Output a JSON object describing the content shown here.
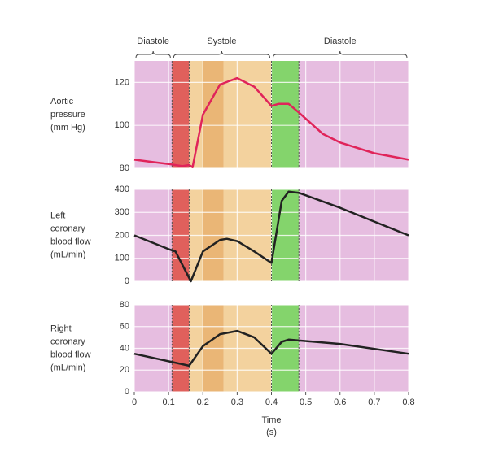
{
  "chart_data": [
    {
      "type": "line",
      "ylabel": [
        "Aortic",
        "pressure",
        "(mm Hg)"
      ],
      "phases": [
        {
          "label": "Diastole",
          "start": 0,
          "end": 0.11
        },
        {
          "label": "Systole",
          "start": 0.11,
          "end": 0.4
        },
        {
          "label": "Diastole",
          "start": 0.4,
          "end": 0.8
        }
      ],
      "background": "#e6bde0",
      "bands": [
        {
          "start": 0.11,
          "end": 0.16,
          "color": "#e0605c",
          "dashed": true
        },
        {
          "start": 0.16,
          "end": 0.2,
          "color": "#f3d29e",
          "dashed": false
        },
        {
          "start": 0.2,
          "end": 0.26,
          "color": "#eab676",
          "dashed": false
        },
        {
          "start": 0.26,
          "end": 0.4,
          "color": "#f3d29e",
          "dashed": false
        },
        {
          "start": 0.4,
          "end": 0.48,
          "color": "#84d46c",
          "dashed": true
        }
      ],
      "xlim": [
        0,
        0.8
      ],
      "ylim": [
        80,
        130
      ],
      "yticks": [
        80,
        100,
        120
      ],
      "x": [
        0,
        0.05,
        0.1,
        0.14,
        0.16,
        0.17,
        0.2,
        0.25,
        0.3,
        0.35,
        0.4,
        0.42,
        0.45,
        0.48,
        0.55,
        0.6,
        0.7,
        0.8
      ],
      "series": [
        {
          "color": "#e0245a",
          "values": [
            84,
            83,
            82,
            81,
            81.5,
            80.5,
            105,
            119,
            122,
            118,
            109,
            110,
            110,
            106,
            96,
            92,
            87,
            84
          ]
        }
      ]
    },
    {
      "type": "line",
      "ylabel": [
        "Left",
        "coronary",
        "blood flow",
        "(mL/min)"
      ],
      "xlim": [
        0,
        0.8
      ],
      "ylim": [
        0,
        400
      ],
      "yticks": [
        0,
        100,
        200,
        300,
        400
      ],
      "x": [
        0,
        0.1,
        0.12,
        0.165,
        0.2,
        0.25,
        0.27,
        0.3,
        0.35,
        0.4,
        0.43,
        0.45,
        0.48,
        0.6,
        0.7,
        0.8
      ],
      "series": [
        {
          "color": "#222222",
          "values": [
            200,
            140,
            130,
            0,
            130,
            180,
            185,
            175,
            130,
            80,
            350,
            390,
            385,
            320,
            260,
            200
          ]
        }
      ]
    },
    {
      "type": "line",
      "ylabel": [
        "Right",
        "coronary",
        "blood flow",
        "(mL/min)"
      ],
      "xlabel": [
        "Time",
        "(s)"
      ],
      "xlim": [
        0,
        0.8
      ],
      "xticks": [
        0,
        0.1,
        0.2,
        0.3,
        0.4,
        0.5,
        0.6,
        0.7,
        0.8
      ],
      "ylim": [
        0,
        80
      ],
      "yticks": [
        0,
        20,
        40,
        60,
        80
      ],
      "x": [
        0,
        0.16,
        0.2,
        0.25,
        0.3,
        0.35,
        0.4,
        0.43,
        0.45,
        0.6,
        0.8
      ],
      "series": [
        {
          "color": "#222222",
          "values": [
            35,
            24,
            42,
            53,
            56,
            50,
            35,
            46,
            48,
            44,
            35
          ]
        }
      ]
    }
  ]
}
